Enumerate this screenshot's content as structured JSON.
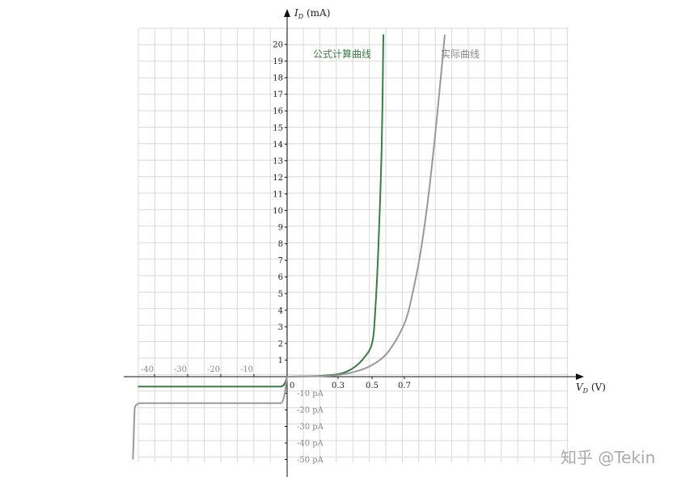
{
  "chart_data": {
    "type": "line",
    "xlabel": "V_D (V)",
    "ylabel": "I_D (mA)",
    "x_ticks_positive": [
      "0",
      "0.3",
      "0.5",
      "0.7"
    ],
    "x_ticks_negative": [
      "-40",
      "-30",
      "-20",
      "-10"
    ],
    "y_ticks_positive": [
      "1",
      "2",
      "3",
      "4",
      "5",
      "6",
      "7",
      "8",
      "9",
      "10",
      "11",
      "12",
      "13",
      "14",
      "15",
      "16",
      "17",
      "18",
      "19",
      "20"
    ],
    "y_ticks_negative": [
      "-10 pA",
      "-20 pA",
      "-30 pA",
      "-40 pA",
      "-50 pA"
    ],
    "grid": true,
    "series": [
      {
        "name": "公式计算曲线",
        "color": "#3a7d44",
        "forward": [
          [
            0,
            0
          ],
          [
            0.1,
            0.02
          ],
          [
            0.2,
            0.05
          ],
          [
            0.3,
            0.15
          ],
          [
            0.35,
            0.3
          ],
          [
            0.4,
            0.6
          ],
          [
            0.45,
            1.1
          ],
          [
            0.5,
            2.0
          ],
          [
            0.52,
            4.0
          ],
          [
            0.54,
            8.0
          ],
          [
            0.56,
            14.0
          ],
          [
            0.57,
            20.6
          ]
        ],
        "reverse_v": [
          0,
          -45
        ],
        "reverse_i_pa": -6
      },
      {
        "name": "实际曲线",
        "color": "#999999",
        "forward": [
          [
            0,
            0
          ],
          [
            0.2,
            0.03
          ],
          [
            0.3,
            0.1
          ],
          [
            0.4,
            0.3
          ],
          [
            0.5,
            0.7
          ],
          [
            0.6,
            1.5
          ],
          [
            0.7,
            3.2
          ],
          [
            0.75,
            5.0
          ],
          [
            0.8,
            7.5
          ],
          [
            0.85,
            11.0
          ],
          [
            0.9,
            15.5
          ],
          [
            0.95,
            20.6
          ]
        ],
        "reverse_v": [
          0,
          -45
        ],
        "reverse_i_pa": -16,
        "breakdown": [
          [
            -45,
            -16
          ],
          [
            -46,
            -20
          ],
          [
            -46.5,
            -50
          ]
        ]
      }
    ]
  },
  "legend": {
    "formula": "公式计算曲线",
    "actual": "实际曲线"
  },
  "axis": {
    "y_label_main": "I",
    "y_label_sub": "D",
    "y_label_unit": " (mA)",
    "x_label_main": "V",
    "x_label_sub": "D",
    "x_label_unit": " (V)"
  },
  "watermark": "知乎 @Tekin"
}
